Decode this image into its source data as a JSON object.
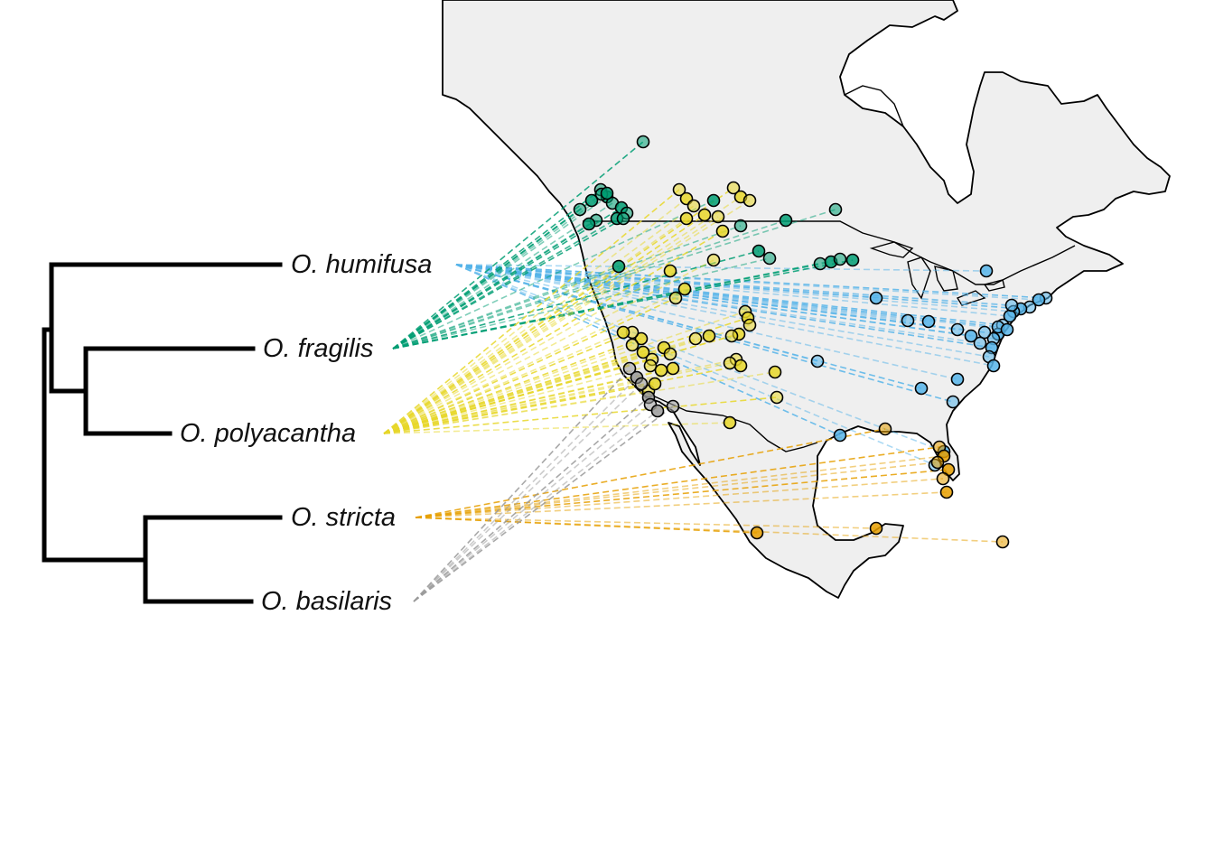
{
  "species": [
    {
      "key": "humifusa",
      "label": "O. humifusa",
      "color": "#56B4E9"
    },
    {
      "key": "fragilis",
      "label": "O. fragilis",
      "color": "#009E73"
    },
    {
      "key": "polyacantha",
      "label": "O. polyacantha",
      "color": "#E8D72A"
    },
    {
      "key": "stricta",
      "label": "O. stricta",
      "color": "#E69F00"
    },
    {
      "key": "basilaris",
      "label": "O. basilaris",
      "color": "#999999"
    }
  ],
  "tree": {
    "description_shown": "cladogram: ((humifusa, (fragilis, polyacantha)), (stricta, basilaris))"
  }
}
